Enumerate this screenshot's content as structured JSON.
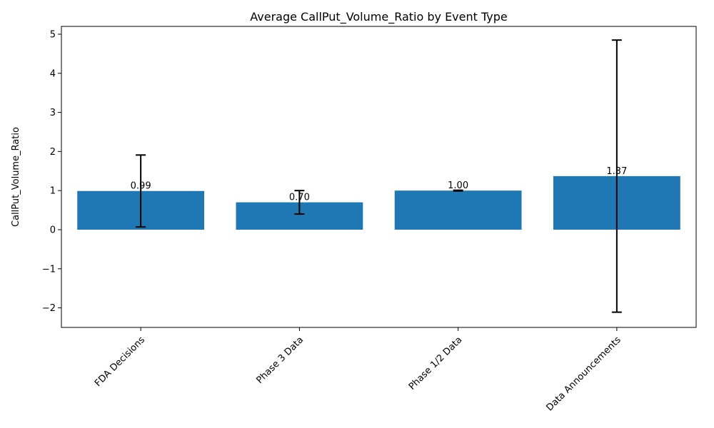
{
  "chart_data": {
    "type": "bar",
    "title": "Average CallPut_Volume_Ratio by Event Type",
    "xlabel": "",
    "ylabel": "CallPut_Volume_Ratio",
    "categories": [
      "FDA Decisions",
      "Phase 3 Data",
      "Phase 1/2 Data",
      "Data Announcements"
    ],
    "values": [
      0.99,
      0.7,
      1.0,
      1.37
    ],
    "value_labels": [
      "0.99",
      "0.70",
      "1.00",
      "1.37"
    ],
    "errors": [
      0.92,
      0.3,
      0.01,
      3.48
    ],
    "ylim": [
      -2.5,
      5.2
    ],
    "yticks": [
      -2,
      -1,
      0,
      1,
      2,
      3,
      4,
      5
    ],
    "ytick_labels": [
      "−2",
      "−1",
      "0",
      "1",
      "2",
      "3",
      "4",
      "5"
    ],
    "bar_color": "#1f77b4",
    "error_color": "#000000",
    "grid": false,
    "x_tick_rotation_deg": 45
  }
}
